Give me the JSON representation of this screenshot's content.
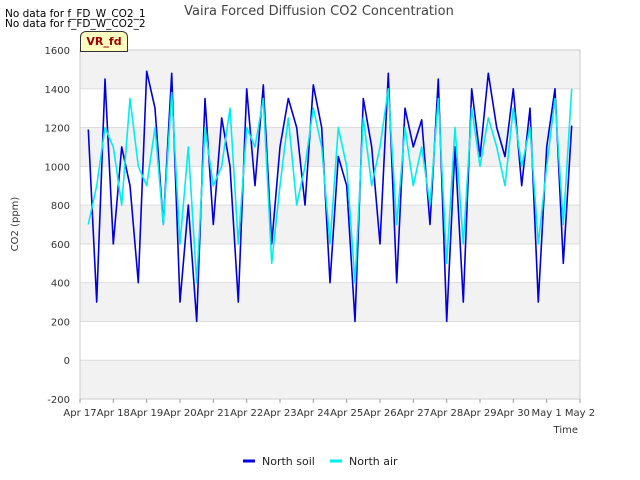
{
  "notices": [
    "No data for f_FD_W_CO2_1",
    "No data for f_FD_W_CO2_2"
  ],
  "badge_label": "VR_fd",
  "colors": {
    "north_soil": "#0000dd",
    "north_air": "#00eeee",
    "band": "#f2f2f2",
    "grid": "#dddddd"
  },
  "chart_data": {
    "type": "line",
    "title": "Vaira Forced Diffusion CO2 Concentration",
    "xlabel": "Time",
    "ylabel": "CO2 (ppm)",
    "ylim": [
      -200,
      1600
    ],
    "yticks": [
      -200,
      0,
      200,
      400,
      600,
      800,
      1000,
      1200,
      1400,
      1600
    ],
    "xlim_days": [
      0,
      15
    ],
    "xticks": [
      "Apr 17",
      "Apr 18",
      "Apr 19",
      "Apr 20",
      "Apr 21",
      "Apr 22",
      "Apr 23",
      "Apr 24",
      "Apr 25",
      "Apr 26",
      "Apr 27",
      "Apr 28",
      "Apr 29",
      "Apr 30",
      "May 1",
      "May 2"
    ],
    "x_days": [
      0.25,
      0.5,
      0.75,
      1.0,
      1.25,
      1.5,
      1.75,
      2.0,
      2.25,
      2.5,
      2.75,
      3.0,
      3.25,
      3.5,
      3.75,
      4.0,
      4.25,
      4.5,
      4.75,
      5.0,
      5.25,
      5.5,
      5.75,
      6.0,
      6.25,
      6.5,
      6.75,
      7.0,
      7.25,
      7.5,
      7.75,
      8.0,
      8.25,
      8.5,
      8.75,
      9.0,
      9.25,
      9.5,
      9.75,
      10.0,
      10.25,
      10.5,
      10.75,
      11.0,
      11.25,
      11.5,
      11.75,
      12.0,
      12.25,
      12.5,
      12.75,
      13.0,
      13.25,
      13.5,
      13.75,
      14.0,
      14.25,
      14.5,
      14.75
    ],
    "series": [
      {
        "name": "North soil",
        "values": [
          1190,
          300,
          1450,
          600,
          1100,
          900,
          400,
          1490,
          1300,
          700,
          1480,
          300,
          800,
          200,
          1350,
          700,
          1250,
          1000,
          300,
          1400,
          900,
          1420,
          600,
          1100,
          1350,
          1200,
          800,
          1420,
          1200,
          400,
          1050,
          900,
          200,
          1350,
          1100,
          600,
          1480,
          400,
          1300,
          1100,
          1240,
          700,
          1450,
          200,
          1100,
          300,
          1400,
          1050,
          1480,
          1200,
          1050,
          1400,
          900,
          1300,
          300,
          1100,
          1400,
          500,
          1210
        ]
      },
      {
        "name": "North air",
        "values": [
          700,
          900,
          1200,
          1100,
          800,
          1350,
          1000,
          900,
          1200,
          700,
          1380,
          600,
          1100,
          400,
          1200,
          900,
          1000,
          1300,
          600,
          1200,
          1100,
          1350,
          500,
          900,
          1250,
          800,
          1000,
          1300,
          1100,
          600,
          1200,
          1000,
          400,
          1250,
          900,
          1100,
          1400,
          700,
          1200,
          900,
          1100,
          800,
          1350,
          500,
          1200,
          600,
          1300,
          1000,
          1250,
          1100,
          900,
          1300,
          1000,
          1200,
          600,
          1000,
          1350,
          700,
          1400
        ]
      }
    ],
    "legend": [
      "North soil",
      "North air"
    ],
    "legend_position": "bottom-center"
  }
}
